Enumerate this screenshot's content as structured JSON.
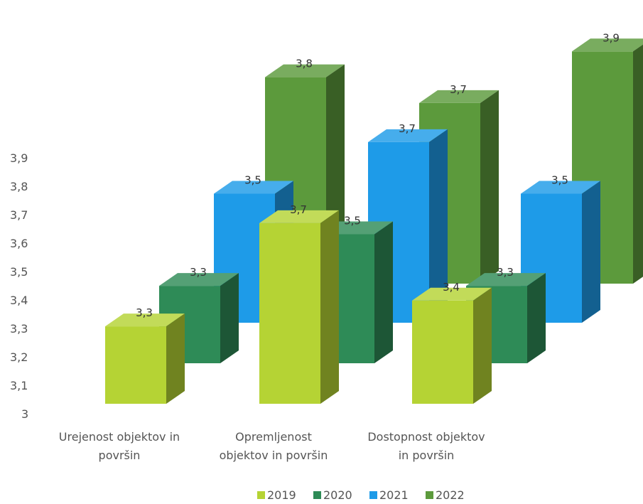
{
  "chart_data": {
    "type": "bar",
    "variant": "3d-clustered-column",
    "categories": [
      "Urejenost objektov in površin",
      "Opremljenost objektov in površin",
      "Dostopnost objektov in površin"
    ],
    "series": [
      {
        "name": "2019",
        "color": "#b5d334",
        "values": [
          3.3,
          3.7,
          3.4
        ]
      },
      {
        "name": "2020",
        "color": "#2e8b57",
        "values": [
          3.3,
          3.5,
          3.3
        ]
      },
      {
        "name": "2021",
        "color": "#1e9be8",
        "values": [
          3.5,
          3.7,
          3.5
        ]
      },
      {
        "name": "2022",
        "color": "#5c9a3c",
        "values": [
          3.8,
          3.7,
          3.9
        ]
      }
    ],
    "y_ticks": [
      "3",
      "3,1",
      "3,2",
      "3,3",
      "3,4",
      "3,5",
      "3,6",
      "3,7",
      "3,8",
      "3,9"
    ],
    "ylim": [
      3,
      3.9
    ],
    "legend_position": "bottom",
    "grid": false,
    "data_labels": true
  }
}
